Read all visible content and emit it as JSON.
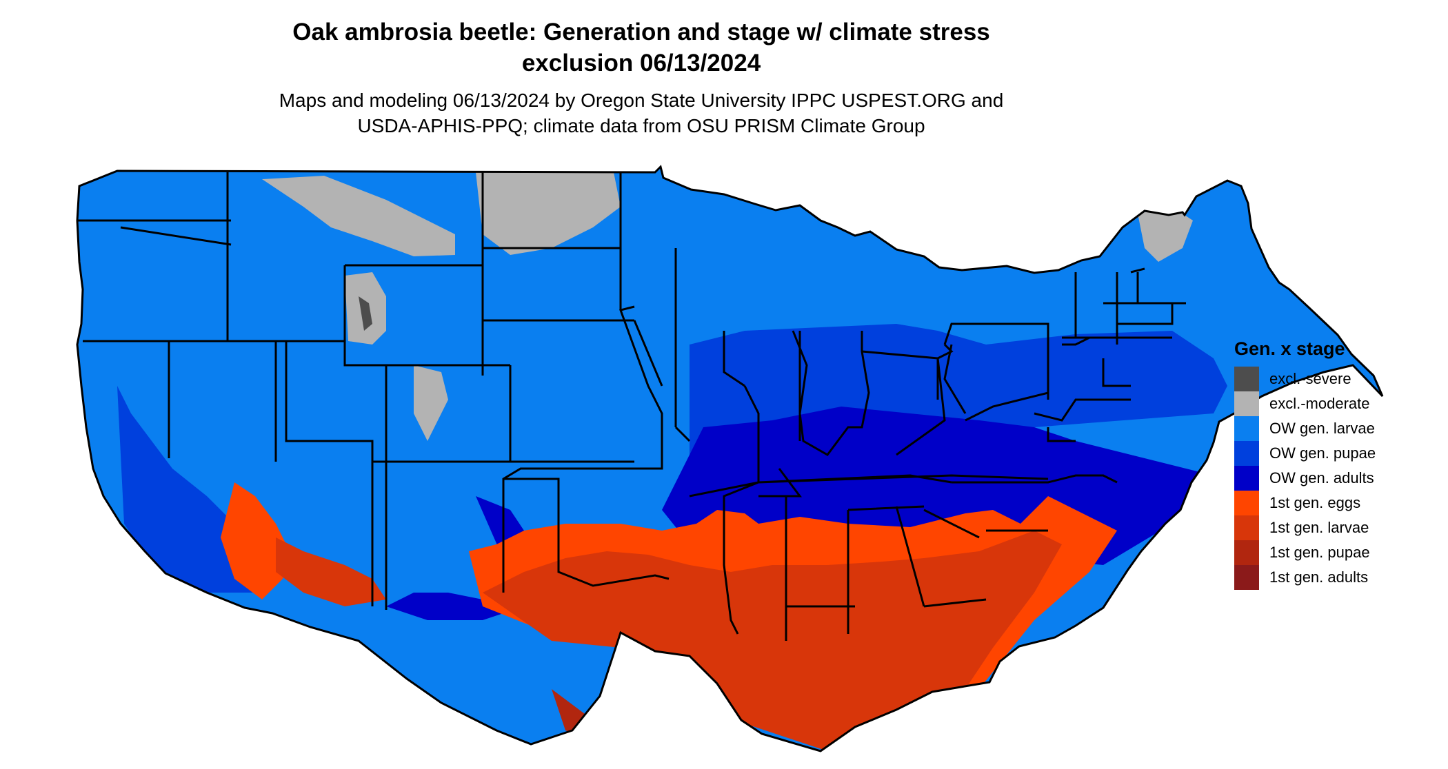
{
  "title_line1": "Oak ambrosia beetle: Generation and stage w/ climate stress",
  "title_line2": "exclusion 06/13/2024",
  "subtitle_line1": "Maps and modeling 06/13/2024 by Oregon State University IPPC USPEST.ORG and",
  "subtitle_line2": "USDA-APHIS-PPQ; climate data from OSU PRISM Climate Group",
  "legend": {
    "title": "Gen. x stage",
    "items": [
      {
        "label": "excl.-severe",
        "color": "#4d4d4d"
      },
      {
        "label": "excl.-moderate",
        "color": "#b3b3b3"
      },
      {
        "label": "OW gen. larvae",
        "color": "#0a7ff0"
      },
      {
        "label": "OW gen. pupae",
        "color": "#0040dd"
      },
      {
        "label": "OW gen. adults",
        "color": "#0000c8"
      },
      {
        "label": "1st gen. eggs",
        "color": "#ff4500"
      },
      {
        "label": "1st gen. larvae",
        "color": "#d8360a"
      },
      {
        "label": "1st gen. pupae",
        "color": "#b1260f"
      },
      {
        "label": "1st gen. adults",
        "color": "#8b1a1a"
      }
    ]
  }
}
